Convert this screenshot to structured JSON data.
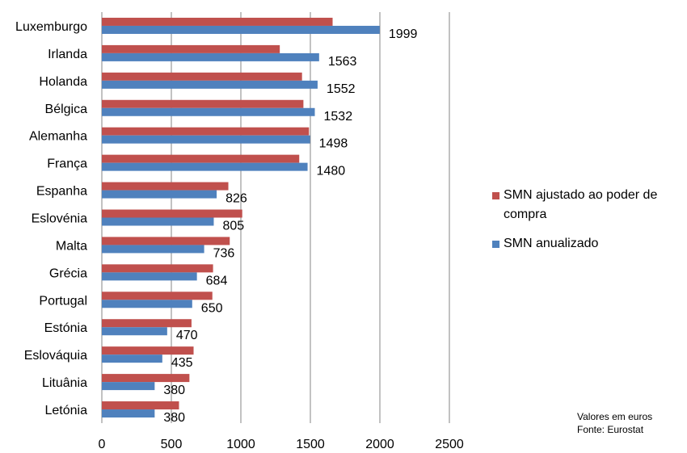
{
  "chart_data": {
    "type": "bar",
    "orientation": "horizontal",
    "categories": [
      "Luxemburgo",
      "Irlanda",
      "Holanda",
      "Bélgica",
      "Alemanha",
      "França",
      "Espanha",
      "Eslovénia",
      "Malta",
      "Grécia",
      "Portugal",
      "Estónia",
      "Eslováquia",
      "Lituânia",
      "Letónia"
    ],
    "series": [
      {
        "name": "SMN ajustado ao poder de compra",
        "color": "#c0504d",
        "values": [
          1660,
          1280,
          1440,
          1450,
          1490,
          1420,
          910,
          1010,
          920,
          800,
          795,
          645,
          660,
          630,
          555
        ]
      },
      {
        "name": "SMN anualizado",
        "color": "#4f81bd",
        "values": [
          1999,
          1563,
          1552,
          1532,
          1498,
          1480,
          826,
          805,
          736,
          684,
          650,
          470,
          435,
          380,
          380
        ]
      }
    ],
    "data_labels": [
      "1999",
      "1563",
      "1552",
      "1532",
      "1498",
      "1480",
      "826",
      "805",
      "736",
      "684",
      "650",
      "470",
      "435",
      "380",
      "380"
    ],
    "xlim": [
      0,
      2500
    ],
    "xticks": [
      "0",
      "500",
      "1000",
      "1500",
      "2000",
      "2500"
    ],
    "grid": true,
    "legend_position": "right",
    "title": "",
    "xlabel": "",
    "ylabel": ""
  },
  "notes": {
    "line1": "Valores em euros",
    "line2": "Fonte: Eurostat"
  }
}
